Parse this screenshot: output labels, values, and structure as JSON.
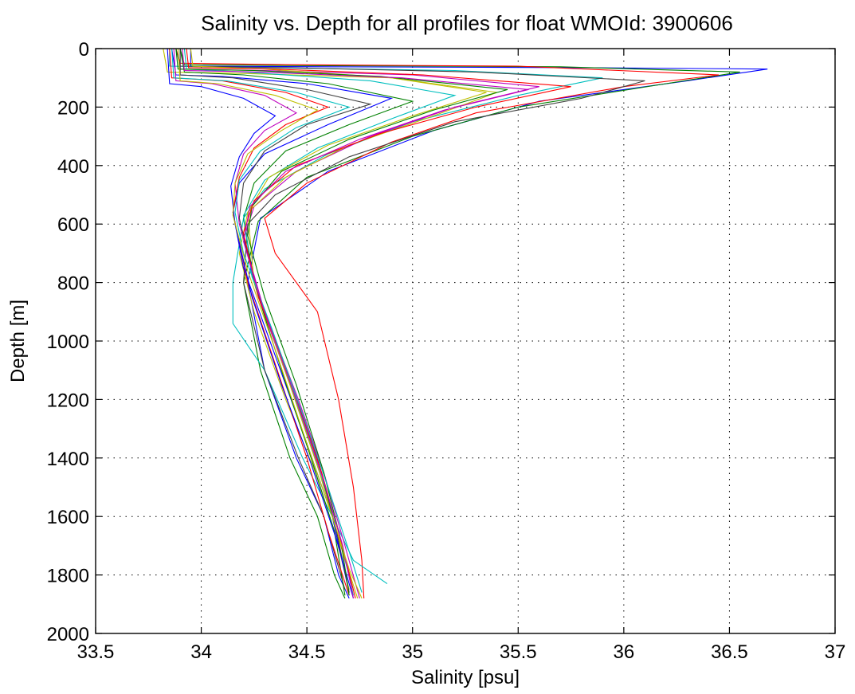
{
  "chart_data": {
    "type": "line",
    "title": "Salinity vs. Depth for all profiles for float WMOId: 3900606",
    "xlabel": "Salinity [psu]",
    "ylabel": "Depth [m]",
    "xlim": [
      33.5,
      37
    ],
    "ylim": [
      0,
      2000
    ],
    "y_reversed": true,
    "grid": true,
    "xticks": [
      "33.5",
      "34",
      "34.5",
      "35",
      "35.5",
      "36",
      "36.5",
      "37"
    ],
    "yticks": [
      "0",
      "200",
      "400",
      "600",
      "800",
      "1000",
      "1200",
      "1400",
      "1600",
      "1800",
      "2000"
    ],
    "series": [
      {
        "color": "#0000ff",
        "x": [
          33.95,
          33.95,
          34.6,
          35.8,
          36.68,
          36.3,
          35.6,
          35.1,
          34.6,
          34.28,
          34.22,
          34.3,
          34.45,
          34.58,
          34.65,
          34.7
        ],
        "y": [
          0,
          60,
          62,
          65,
          70,
          110,
          180,
          280,
          420,
          580,
          800,
          1100,
          1400,
          1600,
          1800,
          1880
        ]
      },
      {
        "color": "#008000",
        "x": [
          33.9,
          33.92,
          34.5,
          35.7,
          36.55,
          36.2,
          35.5,
          35.0,
          34.5,
          34.27,
          34.2,
          34.28,
          34.42,
          34.55,
          34.63,
          34.68
        ],
        "y": [
          0,
          55,
          58,
          62,
          80,
          120,
          200,
          300,
          440,
          590,
          800,
          1100,
          1400,
          1600,
          1800,
          1880
        ]
      },
      {
        "color": "#ff0000",
        "x": [
          33.88,
          33.9,
          34.4,
          35.5,
          36.45,
          36.0,
          35.3,
          34.9,
          34.5,
          34.3,
          34.35,
          34.55,
          34.65,
          34.72,
          34.76,
          34.77
        ],
        "y": [
          0,
          50,
          55,
          60,
          90,
          130,
          220,
          320,
          460,
          580,
          700,
          900,
          1200,
          1500,
          1750,
          1880
        ]
      },
      {
        "color": "#00bfbf",
        "x": [
          33.85,
          33.85,
          34.3,
          35.2,
          35.9,
          35.5,
          35.0,
          34.6,
          34.3,
          34.2,
          34.15,
          34.15,
          34.3,
          34.48,
          34.62,
          34.72,
          34.88
        ],
        "y": [
          0,
          60,
          65,
          75,
          100,
          160,
          250,
          360,
          480,
          580,
          800,
          940,
          1100,
          1400,
          1600,
          1750,
          1830
        ]
      },
      {
        "color": "#bf00bf",
        "x": [
          33.9,
          33.9,
          34.3,
          35.0,
          35.6,
          35.2,
          34.8,
          34.45,
          34.25,
          34.2,
          34.27,
          34.42,
          34.56,
          34.64,
          34.72
        ],
        "y": [
          0,
          70,
          75,
          90,
          130,
          200,
          300,
          420,
          540,
          650,
          850,
          1150,
          1450,
          1650,
          1850
        ]
      },
      {
        "color": "#bfbf00",
        "x": [
          33.82,
          33.84,
          34.2,
          34.9,
          35.4,
          35.1,
          34.7,
          34.4,
          34.22,
          34.18,
          34.25,
          34.4,
          34.54,
          34.63,
          34.7
        ],
        "y": [
          0,
          80,
          85,
          100,
          150,
          230,
          330,
          440,
          560,
          700,
          900,
          1200,
          1450,
          1650,
          1850
        ]
      },
      {
        "color": "#404040",
        "x": [
          33.88,
          33.9,
          34.4,
          35.3,
          36.1,
          35.8,
          35.2,
          34.7,
          34.35,
          34.22,
          34.2,
          34.3,
          34.46,
          34.58,
          34.68
        ],
        "y": [
          0,
          60,
          65,
          80,
          110,
          170,
          250,
          370,
          500,
          600,
          800,
          1100,
          1400,
          1600,
          1850
        ]
      },
      {
        "color": "#0000ff",
        "x": [
          33.86,
          33.88,
          34.1,
          34.5,
          34.9,
          34.6,
          34.3,
          34.18,
          34.15,
          34.2,
          34.35,
          34.5,
          34.62,
          34.7
        ],
        "y": [
          0,
          90,
          95,
          120,
          170,
          260,
          360,
          460,
          560,
          750,
          1050,
          1350,
          1600,
          1860
        ]
      },
      {
        "color": "#008000",
        "x": [
          33.9,
          33.92,
          34.2,
          34.6,
          35.0,
          34.7,
          34.4,
          34.25,
          34.2,
          34.25,
          34.38,
          34.52,
          34.63,
          34.68
        ],
        "y": [
          0,
          80,
          90,
          120,
          180,
          260,
          350,
          460,
          580,
          800,
          1100,
          1400,
          1650,
          1870
        ]
      },
      {
        "color": "#ff0000",
        "x": [
          33.85,
          33.86,
          34.1,
          34.4,
          34.6,
          34.4,
          34.25,
          34.18,
          34.15,
          34.22,
          34.36,
          34.5,
          34.6,
          34.7
        ],
        "y": [
          0,
          100,
          110,
          150,
          200,
          260,
          340,
          440,
          560,
          800,
          1100,
          1400,
          1650,
          1870
        ]
      },
      {
        "color": "#00bfbf",
        "x": [
          33.92,
          33.93,
          34.2,
          34.8,
          35.2,
          34.9,
          34.55,
          34.3,
          34.2,
          34.24,
          34.4,
          34.54,
          34.65,
          34.72
        ],
        "y": [
          0,
          70,
          80,
          110,
          160,
          240,
          340,
          450,
          570,
          780,
          1100,
          1400,
          1650,
          1870
        ]
      },
      {
        "color": "#bf00bf",
        "x": [
          33.87,
          33.88,
          34.05,
          34.3,
          34.45,
          34.3,
          34.2,
          34.16,
          34.18,
          34.3,
          34.46,
          34.58,
          34.68,
          34.75
        ],
        "y": [
          0,
          110,
          120,
          160,
          220,
          280,
          360,
          460,
          600,
          900,
          1200,
          1450,
          1700,
          1880
        ]
      },
      {
        "color": "#bfbf00",
        "x": [
          33.95,
          33.96,
          34.3,
          34.9,
          35.35,
          35.0,
          34.6,
          34.32,
          34.22,
          34.25,
          34.42,
          34.56,
          34.66,
          34.74
        ],
        "y": [
          0,
          60,
          70,
          100,
          150,
          230,
          330,
          440,
          560,
          800,
          1150,
          1450,
          1700,
          1880
        ]
      },
      {
        "color": "#404040",
        "x": [
          33.9,
          33.9,
          34.15,
          34.5,
          34.8,
          34.5,
          34.3,
          34.2,
          34.18,
          34.26,
          34.4,
          34.55,
          34.64,
          34.7
        ],
        "y": [
          0,
          90,
          100,
          140,
          190,
          260,
          350,
          460,
          580,
          820,
          1100,
          1400,
          1650,
          1860
        ]
      },
      {
        "color": "#0000ff",
        "x": [
          33.84,
          33.85,
          34.0,
          34.2,
          34.35,
          34.25,
          34.18,
          34.14,
          34.16,
          34.24,
          34.38,
          34.52,
          34.64,
          34.72
        ],
        "y": [
          0,
          120,
          130,
          170,
          230,
          290,
          370,
          470,
          600,
          850,
          1150,
          1420,
          1680,
          1880
        ]
      },
      {
        "color": "#008000",
        "x": [
          33.88,
          33.89,
          34.25,
          34.85,
          35.45,
          35.1,
          34.7,
          34.38,
          34.24,
          34.22,
          34.3,
          34.45,
          34.58,
          34.66,
          34.7
        ],
        "y": [
          0,
          70,
          75,
          95,
          140,
          210,
          310,
          420,
          540,
          640,
          850,
          1150,
          1450,
          1680,
          1870
        ]
      },
      {
        "color": "#ff0000",
        "x": [
          33.93,
          33.94,
          34.35,
          35.05,
          35.75,
          35.3,
          34.85,
          34.45,
          34.25,
          34.2,
          34.27,
          34.43,
          34.57,
          34.66,
          34.73
        ],
        "y": [
          0,
          65,
          70,
          90,
          130,
          200,
          290,
          400,
          520,
          630,
          850,
          1150,
          1450,
          1680,
          1880
        ]
      },
      {
        "color": "#00bfbf",
        "x": [
          33.86,
          33.87,
          34.12,
          34.45,
          34.7,
          34.45,
          34.28,
          34.18,
          34.16,
          34.2,
          34.33,
          34.48,
          34.6,
          34.7,
          34.76
        ],
        "y": [
          0,
          100,
          110,
          150,
          200,
          270,
          350,
          450,
          560,
          700,
          950,
          1250,
          1500,
          1720,
          1860
        ]
      },
      {
        "color": "#bf00bf",
        "x": [
          33.91,
          33.92,
          34.28,
          34.95,
          35.55,
          35.15,
          34.75,
          34.4,
          34.23,
          34.2,
          34.29,
          34.44,
          34.58,
          34.67,
          34.72
        ],
        "y": [
          0,
          75,
          80,
          100,
          140,
          210,
          310,
          420,
          540,
          660,
          880,
          1180,
          1480,
          1700,
          1880
        ]
      },
      {
        "color": "#bfbf00",
        "x": [
          33.89,
          33.9,
          34.08,
          34.35,
          34.55,
          34.38,
          34.22,
          34.16,
          34.15,
          34.22,
          34.36,
          34.5,
          34.62,
          34.7,
          34.76
        ],
        "y": [
          0,
          110,
          120,
          160,
          210,
          280,
          360,
          460,
          570,
          760,
          1050,
          1350,
          1600,
          1780,
          1880
        ]
      }
    ]
  }
}
